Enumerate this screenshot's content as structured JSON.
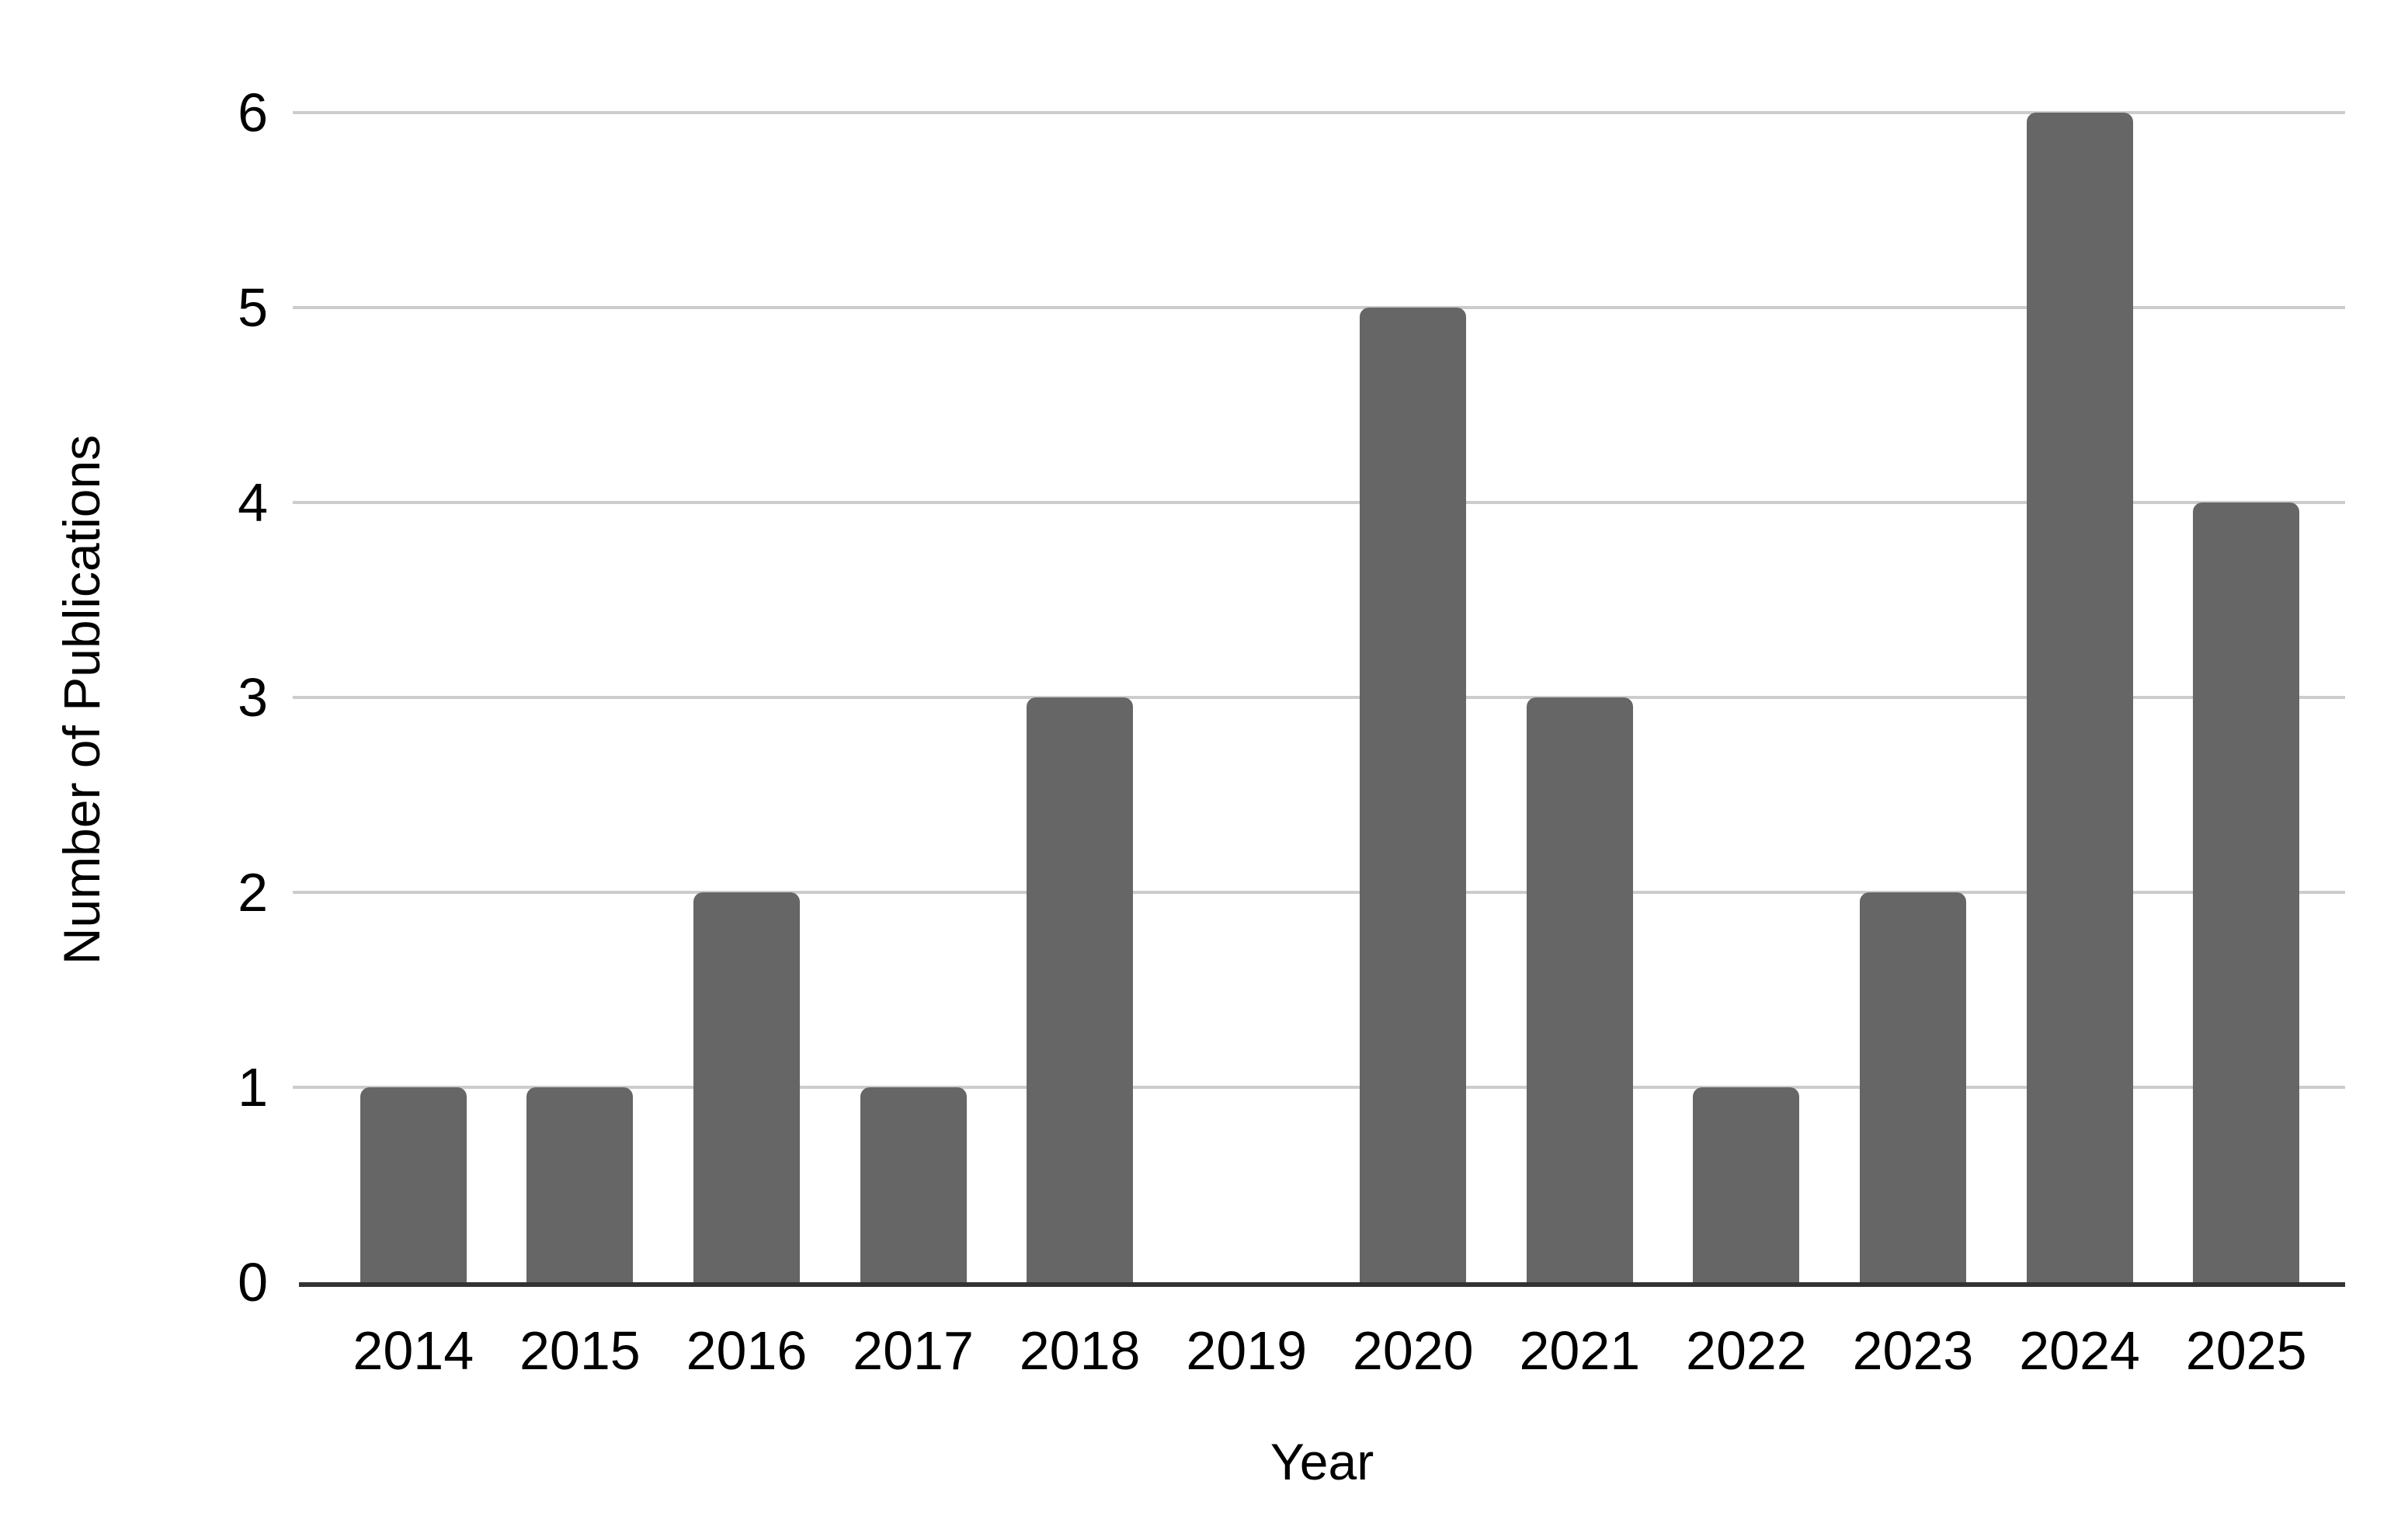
{
  "chart_data": {
    "type": "bar",
    "categories": [
      "2014",
      "2015",
      "2016",
      "2017",
      "2018",
      "2019",
      "2020",
      "2021",
      "2022",
      "2023",
      "2024",
      "2025"
    ],
    "values": [
      1,
      1,
      2,
      1,
      3,
      0,
      5,
      3,
      1,
      2,
      6,
      4
    ],
    "title": "",
    "xlabel": "Year",
    "ylabel": "Number of Publications",
    "ylim": [
      0,
      6
    ],
    "yticks": [
      0,
      1,
      2,
      3,
      4,
      5,
      6
    ],
    "grid": true,
    "legend": false,
    "series_name": "Number of Publications",
    "colors": {
      "bar": "#666666",
      "gridline": "#cccccc",
      "axis_line": "#333333",
      "text": "#000000",
      "background": "#ffffff"
    }
  }
}
